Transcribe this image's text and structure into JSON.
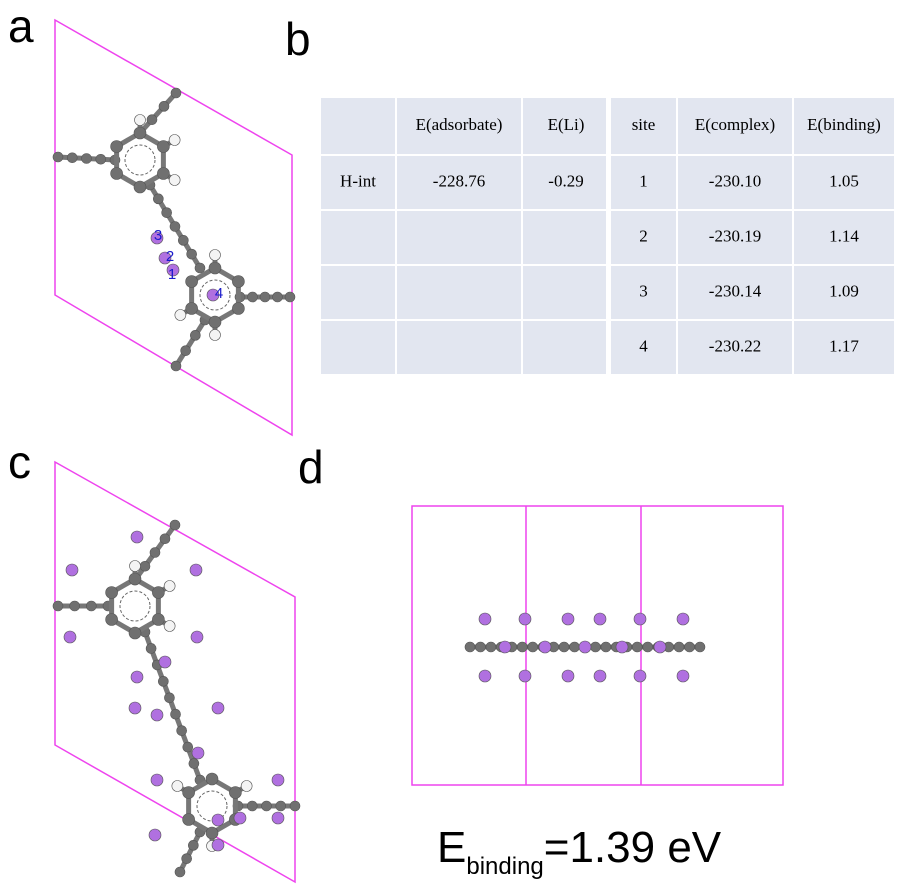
{
  "panels": {
    "a": "a",
    "b": "b",
    "c": "c",
    "d": "d"
  },
  "site_markers": [
    "1",
    "2",
    "3",
    "4"
  ],
  "table": {
    "header": [
      "E(adsorbate)",
      "E(Li)",
      "site",
      "E(complex)",
      "E(binding)"
    ],
    "adsorbate": "H-int",
    "E_adsorbate": "-228.76",
    "E_Li": "-0.29",
    "sites": [
      {
        "site": "1",
        "E_complex": "-230.10",
        "E_binding": "1.05"
      },
      {
        "site": "2",
        "E_complex": "-230.19",
        "E_binding": "1.14"
      },
      {
        "site": "3",
        "E_complex": "-230.14",
        "E_binding": "1.09"
      },
      {
        "site": "4",
        "E_complex": "-230.22",
        "E_binding": "1.17"
      }
    ]
  },
  "energy_label": {
    "symbol": "E",
    "subscript": "binding",
    "value": "=1.39 eV"
  }
}
